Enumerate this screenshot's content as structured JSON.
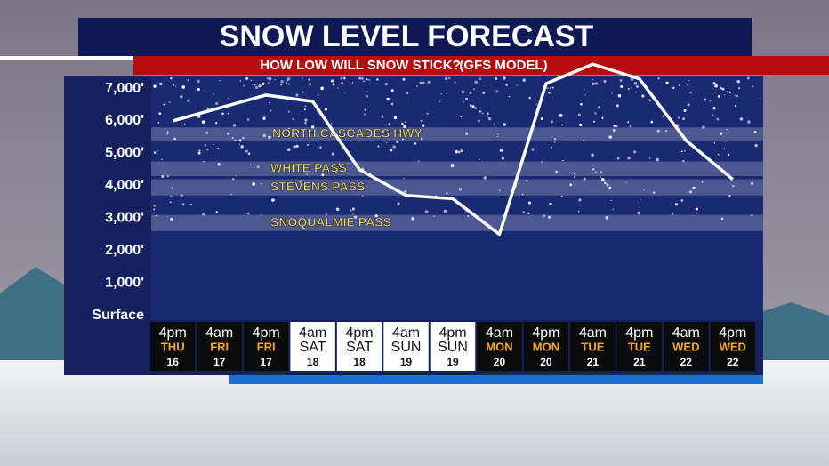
{
  "chart_data": {
    "type": "line",
    "title": "SNOW LEVEL FORECAST",
    "subtitle": "HOW LOW WILL SNOW STICK?",
    "model": "(GFS MODEL)",
    "x_labels": {
      "times": [
        "4pm",
        "4am",
        "4pm",
        "4am",
        "4pm",
        "4am",
        "4pm",
        "4am",
        "4pm",
        "4am",
        "4pm",
        "4am",
        "4pm"
      ],
      "days": [
        "THU",
        "FRI",
        "FRI",
        "SAT",
        "SAT",
        "SUN",
        "SUN",
        "MON",
        "MON",
        "TUE",
        "TUE",
        "WED",
        "WED"
      ],
      "dates": [
        "16",
        "17",
        "17",
        "18",
        "18",
        "19",
        "19",
        "20",
        "20",
        "21",
        "21",
        "22",
        "22"
      ]
    },
    "cell_colors": [
      "#0b0b0b",
      "#0b0b0b",
      "#0b0b0b",
      "#ffffff",
      "#ffffff",
      "#ffffff",
      "#ffffff",
      "#0b0b0b",
      "#0b0b0b",
      "#0b0b0b",
      "#0b0b0b",
      "#0b0b0b",
      "#0b0b0b"
    ],
    "day_colors": [
      "#f5a623",
      "#f5a623",
      "#f5a623",
      "#111111",
      "#111111",
      "#111111",
      "#111111",
      "#f5a623",
      "#f5a623",
      "#f5a623",
      "#f5a623",
      "#f5a623",
      "#f5a623"
    ],
    "series": [
      {
        "name": "Snow level",
        "color": "#ffffff",
        "values": [
          6000,
          6400,
          6800,
          6600,
          4500,
          3700,
          3600,
          2500,
          7150,
          7750,
          7300,
          5400,
          4200
        ]
      }
    ],
    "bands": [
      {
        "label": "NORTH CASCADES HWY",
        "range": [
          5400,
          5800
        ]
      },
      {
        "label": "WHITE PASS",
        "range": [
          4300,
          4750
        ]
      },
      {
        "label": "STEVENS PASS",
        "range": [
          3700,
          4200
        ]
      },
      {
        "label": "SNOQUALMIE PASS",
        "range": [
          2600,
          3100
        ]
      }
    ],
    "ylim": [
      -150,
      7400
    ],
    "yticks": [
      {
        "value": 0,
        "label": "Surface"
      },
      {
        "value": 1000,
        "label": "1,000'"
      },
      {
        "value": 2000,
        "label": "2,000'"
      },
      {
        "value": 3000,
        "label": "3,000'"
      },
      {
        "value": 4000,
        "label": "4,000'"
      },
      {
        "value": 5000,
        "label": "5,000'"
      },
      {
        "value": 6000,
        "label": "6,000'"
      },
      {
        "value": 7000,
        "label": "7,000'"
      }
    ]
  }
}
